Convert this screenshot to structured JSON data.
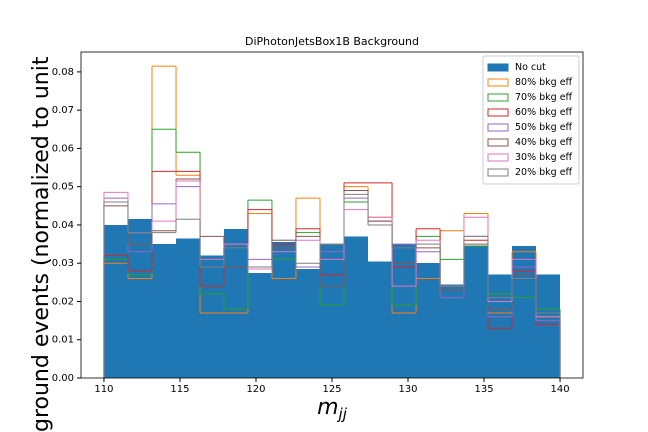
{
  "chart_data": {
    "type": "histogram",
    "title": "DiPhotonJetsBox1B Background",
    "xlabel": "m",
    "xlabel_sub": "jj",
    "ylabel": "ground events (normalized to unit",
    "bins": [
      110,
      111.58,
      113.16,
      114.74,
      116.32,
      117.89,
      119.47,
      121.05,
      122.63,
      124.21,
      125.79,
      127.37,
      128.95,
      130.53,
      132.11,
      133.68,
      135.26,
      136.84,
      138.42,
      140
    ],
    "xlim": [
      108.49,
      141.51
    ],
    "xticks": [
      110,
      115,
      120,
      125,
      130,
      135,
      140
    ],
    "ylim": [
      0,
      0.0852
    ],
    "yticks": [
      {
        "value": 0,
        "label": "0.00"
      },
      {
        "value": 0.01,
        "label": "0.01"
      },
      {
        "value": 0.02,
        "label": "0.02"
      },
      {
        "value": 0.03,
        "label": "0.03"
      },
      {
        "value": 0.04,
        "label": "0.04"
      },
      {
        "value": 0.05,
        "label": "0.05"
      },
      {
        "value": 0.06,
        "label": "0.06"
      },
      {
        "value": 0.07,
        "label": "0.07"
      },
      {
        "value": 0.08,
        "label": "0.08"
      }
    ],
    "legend": "upper right",
    "series": [
      {
        "name": "No cut",
        "color": "#1f77b4",
        "filled": true,
        "values": [
          0.04,
          0.0415,
          0.035,
          0.0365,
          0.032,
          0.039,
          0.0275,
          0.0355,
          0.0285,
          0.035,
          0.037,
          0.0305,
          0.035,
          0.03,
          0.0245,
          0.0345,
          0.027,
          0.0345,
          0.027
        ]
      },
      {
        "name": "80% bkg eff",
        "color": "#ff7f0e",
        "values": [
          0.03,
          0.026,
          0.0815,
          0.053,
          0.017,
          0.017,
          0.043,
          0.026,
          0.047,
          0.035,
          0.05,
          0.042,
          0.017,
          0.026,
          0.0385,
          0.043,
          0.017,
          0.033,
          0.016
        ]
      },
      {
        "name": "70% bkg eff",
        "color": "#2ca02c",
        "values": [
          0.031,
          0.027,
          0.065,
          0.059,
          0.022,
          0.018,
          0.0465,
          0.031,
          0.038,
          0.019,
          0.046,
          0.04,
          0.019,
          0.037,
          0.031,
          0.0345,
          0.022,
          0.021,
          0.018
        ]
      },
      {
        "name": "60% bkg eff",
        "color": "#d62728",
        "values": [
          0.032,
          0.028,
          0.054,
          0.054,
          0.024,
          0.029,
          0.044,
          0.035,
          0.039,
          0.027,
          0.051,
          0.051,
          0.029,
          0.039,
          0.024,
          0.036,
          0.013,
          0.028,
          0.014
        ]
      },
      {
        "name": "50% bkg eff",
        "color": "#9467bd",
        "values": [
          0.047,
          0.033,
          0.0455,
          0.05,
          0.029,
          0.035,
          0.031,
          0.036,
          0.029,
          0.033,
          0.047,
          0.041,
          0.035,
          0.033,
          0.021,
          0.037,
          0.016,
          0.029,
          0.015
        ]
      },
      {
        "name": "40% bkg eff",
        "color": "#8c564b",
        "values": [
          0.045,
          0.035,
          0.0385,
          0.052,
          0.037,
          0.029,
          0.029,
          0.034,
          0.037,
          0.024,
          0.049,
          0.041,
          0.03,
          0.034,
          0.023,
          0.035,
          0.018,
          0.027,
          0.017
        ]
      },
      {
        "name": "30% bkg eff",
        "color": "#e377c2",
        "values": [
          0.0485,
          0.038,
          0.041,
          0.0515,
          0.031,
          0.035,
          0.0285,
          0.033,
          0.036,
          0.031,
          0.044,
          0.042,
          0.024,
          0.036,
          0.024,
          0.042,
          0.02,
          0.031,
          0.016
        ]
      },
      {
        "name": "20% bkg eff",
        "color": "#7f7f7f",
        "values": [
          0.046,
          0.038,
          0.038,
          0.0415,
          0.029,
          0.034,
          0.029,
          0.036,
          0.03,
          0.035,
          0.048,
          0.04,
          0.034,
          0.035,
          0.024,
          0.037,
          0.021,
          0.026,
          0.017
        ]
      }
    ]
  }
}
